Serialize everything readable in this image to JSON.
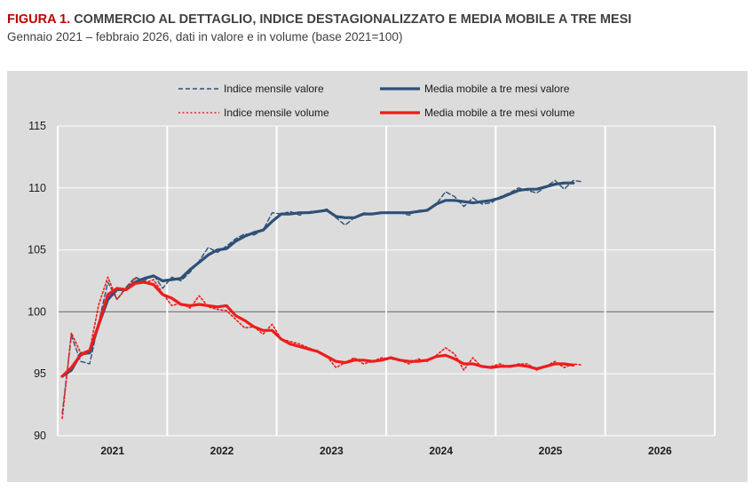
{
  "title": {
    "prefix": "FIGURA 1.",
    "text": "COMMERCIO AL DETTAGLIO, INDICE DESTAGIONALIZZATO E MEDIA MOBILE A TRE MESI",
    "subtitle": "Gennaio 2021 – febbraio 2026, dati in valore e in volume (base 2021=100)"
  },
  "colors": {
    "valore": "#2e5077",
    "volume": "#ee1c1c",
    "panel": "#dcdcdc",
    "grid": "#ffffff",
    "baseline": "#808080"
  },
  "chart_data": {
    "type": "line",
    "ylim": [
      90,
      115
    ],
    "yticks": [
      90,
      95,
      100,
      105,
      110,
      115
    ],
    "year_labels": [
      "2021",
      "2022",
      "2023",
      "2024",
      "2025",
      "2026"
    ],
    "reference_line": 100,
    "legend": [
      "Indice mensile valore",
      "Media mobile a tre mesi valore",
      "Indice mensile volume",
      "Media mobile a tre mesi volume"
    ],
    "legend_position": "top",
    "series": [
      {
        "name": "Indice mensile valore",
        "style": "dashed",
        "color": "#2e5077",
        "x0": 0,
        "values": [
          91.8,
          98.1,
          96.0,
          95.8,
          99.2,
          102.4,
          101.0,
          102.0,
          102.8,
          102.5,
          103.0,
          101.9,
          102.8,
          102.5,
          103.2,
          104.1,
          105.2,
          104.8,
          105.3,
          105.9,
          106.3,
          106.2,
          106.6,
          108.0,
          107.9,
          108.1,
          107.8,
          108.1,
          108.1,
          108.3,
          107.6,
          107.0,
          107.6,
          108.0,
          107.9,
          108.0,
          108.0,
          108.0,
          107.8,
          108.2,
          108.2,
          108.7,
          109.7,
          109.3,
          108.5,
          109.2,
          108.7,
          108.8,
          109.3,
          109.6,
          110.0,
          109.8,
          109.6,
          110.1,
          110.6,
          109.9,
          110.6,
          110.5
        ]
      },
      {
        "name": "Media mobile a tre mesi valore",
        "style": "solid",
        "color": "#2e5077",
        "x0": 0,
        "values": [
          94.8,
          95.3,
          96.6,
          96.7,
          99.0,
          101.0,
          101.8,
          101.8,
          102.4,
          102.7,
          102.9,
          102.5,
          102.6,
          102.7,
          103.4,
          104.0,
          104.6,
          105.0,
          105.1,
          105.7,
          106.1,
          106.4,
          106.6,
          107.3,
          107.9,
          107.9,
          108.0,
          108.0,
          108.1,
          108.2,
          107.7,
          107.6,
          107.6,
          107.9,
          107.9,
          108.0,
          108.0,
          108.0,
          108.0,
          108.1,
          108.2,
          108.7,
          109.0,
          109.0,
          108.9,
          108.8,
          108.9,
          109.0,
          109.2,
          109.5,
          109.8,
          109.9,
          109.9,
          110.1,
          110.3,
          110.4,
          110.4
        ]
      },
      {
        "name": "Indice mensile volume",
        "style": "dotted",
        "color": "#ee1c1c",
        "x0": 0,
        "values": [
          91.4,
          98.3,
          96.7,
          96.9,
          100.6,
          102.8,
          101.0,
          101.9,
          102.7,
          102.3,
          102.6,
          101.5,
          100.5,
          100.7,
          100.3,
          101.3,
          100.4,
          100.2,
          100.1,
          99.4,
          98.7,
          98.8,
          98.2,
          99.0,
          97.8,
          97.6,
          97.4,
          97.1,
          96.8,
          96.4,
          95.5,
          95.9,
          96.3,
          95.8,
          96.0,
          96.3,
          96.2,
          96.1,
          95.8,
          96.2,
          96.0,
          96.5,
          97.1,
          96.6,
          95.3,
          96.3,
          95.5,
          95.6,
          95.8,
          95.5,
          95.8,
          95.8,
          95.3,
          95.6,
          96.0,
          95.5,
          95.8,
          95.7
        ]
      },
      {
        "name": "Media mobile a tre mesi volume",
        "style": "solid",
        "color": "#ee1c1c",
        "x0": 0,
        "values": [
          94.8,
          95.5,
          96.5,
          96.9,
          99.0,
          101.4,
          101.9,
          101.8,
          102.3,
          102.4,
          102.2,
          101.4,
          101.1,
          100.6,
          100.5,
          100.6,
          100.5,
          100.4,
          100.5,
          99.7,
          99.3,
          98.8,
          98.5,
          98.5,
          97.8,
          97.4,
          97.2,
          97.0,
          96.8,
          96.4,
          96.0,
          95.9,
          96.1,
          96.1,
          96.0,
          96.1,
          96.3,
          96.1,
          96.0,
          96.0,
          96.1,
          96.4,
          96.5,
          96.2,
          95.8,
          95.8,
          95.6,
          95.5,
          95.6,
          95.6,
          95.7,
          95.6,
          95.4,
          95.6,
          95.8,
          95.8,
          95.7
        ]
      }
    ]
  }
}
